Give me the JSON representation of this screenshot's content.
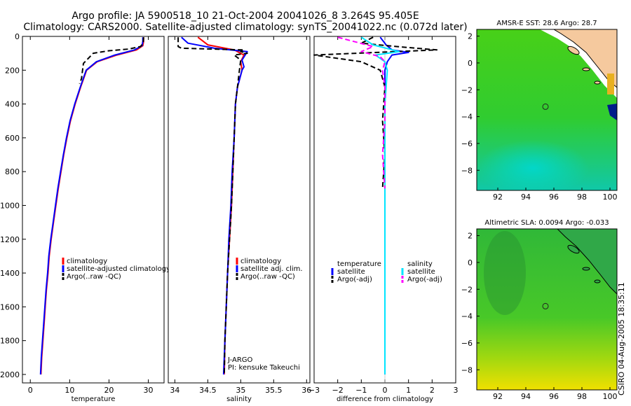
{
  "header": {
    "line1": "Argo profile: JA 5900518_10 21-Oct-2004 20041026_8 3.264S 95.405E",
    "line2": "Climatology: CARS2000. Satellite-adjusted climatology: synTS_20041022.nc (0.072d later)"
  },
  "footer": {
    "stamp": "CSIRO 04-Aug-2005 18:35:11"
  },
  "colors": {
    "climatology": "#ff0000",
    "satellite": "#0000ff",
    "argo": "#000000",
    "salinity": "#00e5ff",
    "argo_adj": "#ff00ff",
    "land": "#f5c99e",
    "float": "#222222"
  },
  "chart_data": [
    {
      "type": "line",
      "id": "temperature",
      "xlabel": "temperature",
      "ylabel": "",
      "xlim": [
        -2,
        34
      ],
      "ylim": [
        2050,
        0
      ],
      "x_ticks": [
        0,
        10,
        20,
        30
      ],
      "y_ticks": [
        0,
        200,
        400,
        600,
        800,
        1000,
        1200,
        1400,
        1600,
        1800,
        2000
      ],
      "legend": [
        "climatology",
        "satellite-adjusted climatology",
        "Argo(..raw -QC)"
      ],
      "series": [
        {
          "name": "climatology",
          "color": "#ff0000",
          "dash": false,
          "points": [
            [
              28.8,
              5
            ],
            [
              28.8,
              30
            ],
            [
              28.6,
              55
            ],
            [
              27,
              80
            ],
            [
              22,
              110
            ],
            [
              17,
              150
            ],
            [
              14.3,
              200
            ],
            [
              12.8,
              300
            ],
            [
              11.4,
              400
            ],
            [
              10.2,
              500
            ],
            [
              9.3,
              600
            ],
            [
              8.5,
              700
            ],
            [
              7.8,
              800
            ],
            [
              7.1,
              900
            ],
            [
              6.5,
              1000
            ],
            [
              5.9,
              1100
            ],
            [
              5.3,
              1200
            ],
            [
              4.8,
              1300
            ],
            [
              4.5,
              1400
            ],
            [
              4.1,
              1500
            ],
            [
              3.8,
              1600
            ],
            [
              3.5,
              1700
            ],
            [
              3.2,
              1800
            ],
            [
              2.9,
              1900
            ],
            [
              2.7,
              2000
            ]
          ]
        },
        {
          "name": "satellite",
          "color": "#0000ff",
          "dash": false,
          "points": [
            [
              28.6,
              5
            ],
            [
              28.6,
              30
            ],
            [
              28.4,
              55
            ],
            [
              26.5,
              80
            ],
            [
              21.5,
              110
            ],
            [
              16.8,
              150
            ],
            [
              14.2,
              200
            ],
            [
              12.7,
              300
            ],
            [
              11.3,
              400
            ],
            [
              10.1,
              500
            ],
            [
              9.2,
              600
            ],
            [
              8.4,
              700
            ],
            [
              7.7,
              800
            ],
            [
              7,
              900
            ],
            [
              6.4,
              1000
            ],
            [
              5.8,
              1100
            ],
            [
              5.2,
              1200
            ],
            [
              4.7,
              1300
            ],
            [
              4.4,
              1400
            ],
            [
              4,
              1500
            ],
            [
              3.7,
              1600
            ],
            [
              3.4,
              1700
            ],
            [
              3.1,
              1800
            ],
            [
              2.8,
              1900
            ],
            [
              2.6,
              2000
            ]
          ]
        },
        {
          "name": "Argo(..raw -QC)",
          "color": "#000000",
          "dash": true,
          "points": [
            [
              28.8,
              5
            ],
            [
              28.7,
              40
            ],
            [
              28,
              60
            ],
            [
              25,
              75
            ],
            [
              20,
              85
            ],
            [
              16,
              100
            ],
            [
              13.5,
              160
            ],
            [
              13,
              250
            ],
            [
              12.5,
              280
            ]
          ]
        }
      ],
      "annotations": []
    },
    {
      "type": "line",
      "id": "salinity",
      "xlabel": "salinity",
      "ylabel": "",
      "xlim": [
        33.9,
        36.05
      ],
      "ylim": [
        2050,
        0
      ],
      "x_ticks": [
        34,
        34.5,
        35,
        35.5,
        36
      ],
      "y_ticks": [],
      "legend": [
        "climatology",
        "satellite adj. clim.",
        "Argo(..raw -QC)"
      ],
      "series": [
        {
          "name": "climatology",
          "color": "#ff0000",
          "dash": false,
          "points": [
            [
              34.35,
              5
            ],
            [
              34.5,
              50
            ],
            [
              34.9,
              80
            ],
            [
              35.05,
              110
            ],
            [
              35,
              150
            ],
            [
              35.02,
              200
            ],
            [
              34.95,
              300
            ],
            [
              34.92,
              400
            ],
            [
              34.9,
              600
            ],
            [
              34.88,
              800
            ],
            [
              34.86,
              1000
            ],
            [
              34.83,
              1200
            ],
            [
              34.8,
              1400
            ],
            [
              34.78,
              1600
            ],
            [
              34.76,
              1800
            ],
            [
              34.75,
              2000
            ]
          ]
        },
        {
          "name": "satellite",
          "color": "#0000ff",
          "dash": false,
          "points": [
            [
              34.1,
              5
            ],
            [
              34.2,
              40
            ],
            [
              34.6,
              70
            ],
            [
              35.1,
              90
            ],
            [
              35.02,
              140
            ],
            [
              35.05,
              180
            ],
            [
              35.02,
              200
            ],
            [
              34.95,
              300
            ],
            [
              34.92,
              400
            ],
            [
              34.9,
              600
            ],
            [
              34.87,
              800
            ],
            [
              34.85,
              1000
            ],
            [
              34.82,
              1200
            ],
            [
              34.8,
              1400
            ],
            [
              34.78,
              1600
            ],
            [
              34.76,
              1800
            ],
            [
              34.74,
              2000
            ]
          ]
        },
        {
          "name": "Argo(..raw -QC)",
          "color": "#000000",
          "dash": true,
          "points": [
            [
              34.05,
              5
            ],
            [
              34.05,
              60
            ],
            [
              34.1,
              70
            ],
            [
              35.05,
              80
            ],
            [
              35,
              90
            ],
            [
              35.1,
              100
            ],
            [
              34.9,
              110
            ],
            [
              35,
              140
            ],
            [
              34.98,
              200
            ],
            [
              34.95,
              300
            ],
            [
              34.92,
              400
            ],
            [
              34.9,
              600
            ],
            [
              34.88,
              800
            ],
            [
              34.86,
              1000
            ],
            [
              34.83,
              1200
            ],
            [
              34.8,
              1400
            ],
            [
              34.78,
              1600
            ],
            [
              34.76,
              1800
            ],
            [
              34.75,
              2000
            ]
          ]
        }
      ],
      "annotations": [
        "J-ARGO",
        "PI: kensuke Takeuchi"
      ]
    },
    {
      "type": "line",
      "id": "difference",
      "xlabel": "difference from climatology",
      "ylabel": "",
      "xlim": [
        -3,
        3
      ],
      "ylim": [
        2050,
        0
      ],
      "x_ticks": [
        -3,
        -2,
        -1,
        0,
        1,
        2,
        3
      ],
      "y_ticks": [],
      "legend_titles": [
        "temperature",
        "salinity"
      ],
      "legend": [
        "satellite",
        "Argo(-adj)",
        "satellite",
        "Argo(-adj)"
      ],
      "series": [
        {
          "name": "temperature satellite",
          "color": "#0000ff",
          "dash": false,
          "points": [
            [
              -0.2,
              5
            ],
            [
              0.05,
              50
            ],
            [
              0.3,
              80
            ],
            [
              1,
              95
            ],
            [
              0.3,
              110
            ],
            [
              0.1,
              150
            ],
            [
              0,
              200
            ],
            [
              0,
              400
            ],
            [
              0,
              1000
            ],
            [
              0,
              2000
            ]
          ]
        },
        {
          "name": "temperature Argo(-adj)",
          "color": "#000000",
          "dash": true,
          "points": [
            [
              -0.5,
              5
            ],
            [
              -1,
              40
            ],
            [
              0.5,
              60
            ],
            [
              2.2,
              80
            ],
            [
              -3,
              110
            ],
            [
              -1,
              150
            ],
            [
              -0.2,
              200
            ],
            [
              0,
              300
            ],
            [
              -0.1,
              500
            ],
            [
              0,
              700
            ],
            [
              -0.1,
              900
            ]
          ]
        },
        {
          "name": "salinity satellite",
          "color": "#00e5ff",
          "dash": false,
          "points": [
            [
              -1,
              5
            ],
            [
              -0.5,
              50
            ],
            [
              0.6,
              90
            ],
            [
              -0.4,
              110
            ],
            [
              0,
              150
            ],
            [
              0.1,
              200
            ],
            [
              0,
              400
            ],
            [
              0,
              1000
            ],
            [
              0,
              2000
            ]
          ]
        },
        {
          "name": "salinity Argo(-adj)",
          "color": "#ff00ff",
          "dash": true,
          "points": [
            [
              -2,
              5
            ],
            [
              -0.5,
              60
            ],
            [
              -1,
              90
            ],
            [
              -0.2,
              120
            ],
            [
              0,
              150
            ],
            [
              -0.1,
              200
            ],
            [
              0,
              300
            ],
            [
              0,
              500
            ],
            [
              -0.1,
              700
            ],
            [
              0,
              900
            ]
          ]
        }
      ],
      "annotations": []
    },
    {
      "type": "heatmap",
      "id": "sst-map",
      "title": "AMSR-E SST: 28.6 Argo: 28.7",
      "xlabel": "",
      "ylabel": "",
      "xlim": [
        90.5,
        100.5
      ],
      "ylim": [
        -9.5,
        2.5
      ],
      "x_ticks": [
        92,
        94,
        96,
        98,
        100
      ],
      "y_ticks": [
        2,
        0,
        -2,
        -4,
        -6,
        -8
      ],
      "float_position": [
        95.4,
        -3.26
      ],
      "color_low": "#00d8b0",
      "color_mid": "#40d010",
      "color_high": "#e0d800"
    },
    {
      "type": "heatmap",
      "id": "sla-map",
      "title": "Altimetric SLA: 0.0094 Argo: -0.033",
      "xlabel": "",
      "ylabel": "",
      "xlim": [
        90.5,
        100.5
      ],
      "ylim": [
        -9.5,
        2.5
      ],
      "x_ticks": [
        92,
        94,
        96,
        98,
        100
      ],
      "y_ticks": [
        2,
        0,
        -2,
        -4,
        -6,
        -8
      ],
      "float_position": [
        95.4,
        -3.26
      ],
      "color_low": "#30b838",
      "color_mid": "#58d020",
      "color_high": "#e8e000"
    }
  ]
}
